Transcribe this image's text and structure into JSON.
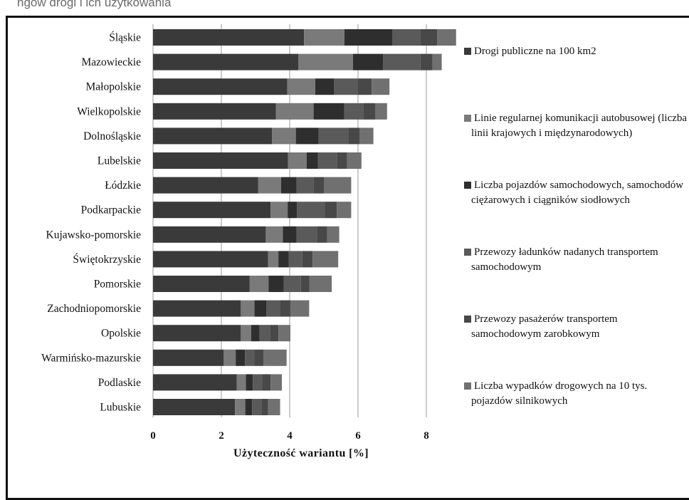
{
  "header": {
    "caption": "ngów drogi i ich użytkowania"
  },
  "chart_data": {
    "type": "bar",
    "orientation": "horizontal",
    "stacked": true,
    "categories": [
      "Śląskie",
      "Mazowieckie",
      "Małopolskie",
      "Wielkopolskie",
      "Dolnośląskie",
      "Lubelskie",
      "Łódzkie",
      "Podkarpackie",
      "Kujawsko-pomorskie",
      "Świętokrzyskie",
      "Pomorskie",
      "Zachodniopomorskie",
      "Opolskie",
      "Warmińsko-mazurskie",
      "Podlaskie",
      "Lubuskie"
    ],
    "series": [
      {
        "name": "Drogi publiczne na 100 km2",
        "color": "#3a3a3a",
        "values": [
          4.42,
          4.25,
          3.93,
          3.6,
          3.48,
          3.95,
          3.08,
          3.44,
          3.3,
          3.37,
          2.83,
          2.57,
          2.57,
          2.07,
          2.45,
          2.4
        ]
      },
      {
        "name": "Linie regularnej komunikacji autobusowej (liczba linii krajowych i międzynarodowych)",
        "color": "#7a7a7a",
        "values": [
          1.18,
          1.6,
          0.82,
          1.1,
          0.7,
          0.55,
          0.67,
          0.5,
          0.5,
          0.3,
          0.55,
          0.4,
          0.3,
          0.35,
          0.27,
          0.3
        ]
      },
      {
        "name": "Liczba pojazdów samochodowych, samochodów ciężarowych i ciągników siodłowych",
        "color": "#2e2e2e",
        "values": [
          1.4,
          0.88,
          0.55,
          0.9,
          0.67,
          0.33,
          0.45,
          0.27,
          0.4,
          0.3,
          0.45,
          0.35,
          0.25,
          0.27,
          0.2,
          0.2
        ]
      },
      {
        "name": "Przewozy ładunków nadanych transportem samochodowym",
        "color": "#5a5a5a",
        "values": [
          0.82,
          1.1,
          0.7,
          0.55,
          0.87,
          0.55,
          0.5,
          0.82,
          0.6,
          0.4,
          0.5,
          0.4,
          0.3,
          0.27,
          0.27,
          0.27
        ]
      },
      {
        "name": "Przewozy pasażerów transportem samochodowym zarobkowym",
        "color": "#484848",
        "values": [
          0.5,
          0.35,
          0.4,
          0.35,
          0.33,
          0.3,
          0.3,
          0.35,
          0.3,
          0.3,
          0.25,
          0.3,
          0.25,
          0.27,
          0.25,
          0.2
        ]
      },
      {
        "name": "Liczba wypadków drogowych na 10 tys. pojazdów silnikowych",
        "color": "#707070",
        "values": [
          0.55,
          0.27,
          0.52,
          0.35,
          0.4,
          0.42,
          0.8,
          0.42,
          0.35,
          0.75,
          0.65,
          0.55,
          0.35,
          0.68,
          0.33,
          0.35
        ]
      }
    ],
    "xlabel": "Użyteczność wariantu [%]",
    "ylabel": "",
    "xlim": [
      0,
      8.9
    ],
    "xticks": [
      0,
      2,
      4,
      6,
      8
    ],
    "grid": true,
    "legend_position": "right"
  }
}
